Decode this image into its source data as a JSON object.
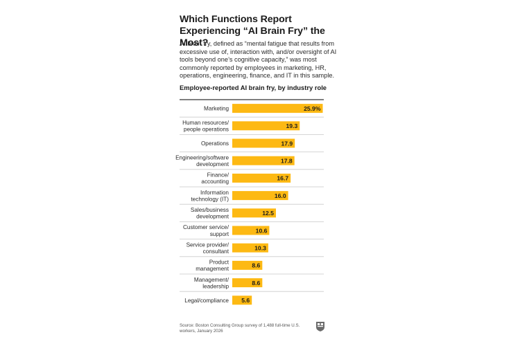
{
  "title": "Which Functions Report Experiencing “AI Brain Fry” the Most?",
  "description": "AI brain fry, defined as “mental fatigue that results from excessive use of, interaction with, and/or oversight of AI tools beyond one’s cognitive capacity,” was most commonly reported by employees in marketing, HR, operations, engineering, finance, and IT in this sample.",
  "source": "Source: Boston Consulting Group survey of 1,488 full-time U.S. workers, January 2026",
  "logo_icon": "shield-logo-icon",
  "colors": {
    "bar": "#fdb913",
    "divider": "#c9c9c9",
    "baseline": "#333333",
    "text": "#1a1a1a"
  },
  "chart_data": {
    "type": "bar",
    "orientation": "horizontal",
    "title": "Employee-reported AI brain fry, by industry role",
    "categories": [
      [
        "Marketing"
      ],
      [
        "Human resources/",
        "people operations"
      ],
      [
        "Operations"
      ],
      [
        "Engineering/software",
        "development"
      ],
      [
        "Finance/",
        "accounting"
      ],
      [
        "Information",
        "technology (IT)"
      ],
      [
        "Sales/business",
        "development"
      ],
      [
        "Customer service/",
        "support"
      ],
      [
        "Service provider/",
        "consultant"
      ],
      [
        "Product",
        "management"
      ],
      [
        "Management/",
        "leadership"
      ],
      [
        "Legal/compliance"
      ]
    ],
    "values": [
      25.9,
      19.3,
      17.9,
      17.8,
      16.7,
      16.0,
      12.5,
      10.6,
      10.3,
      8.6,
      8.6,
      5.6
    ],
    "data_labels": [
      "25.9%",
      "19.3",
      "17.9",
      "17.8",
      "16.7",
      "16.0",
      "12.5",
      "10.6",
      "10.3",
      "8.6",
      "8.6",
      "5.6"
    ],
    "xlim": [
      0,
      26
    ]
  }
}
